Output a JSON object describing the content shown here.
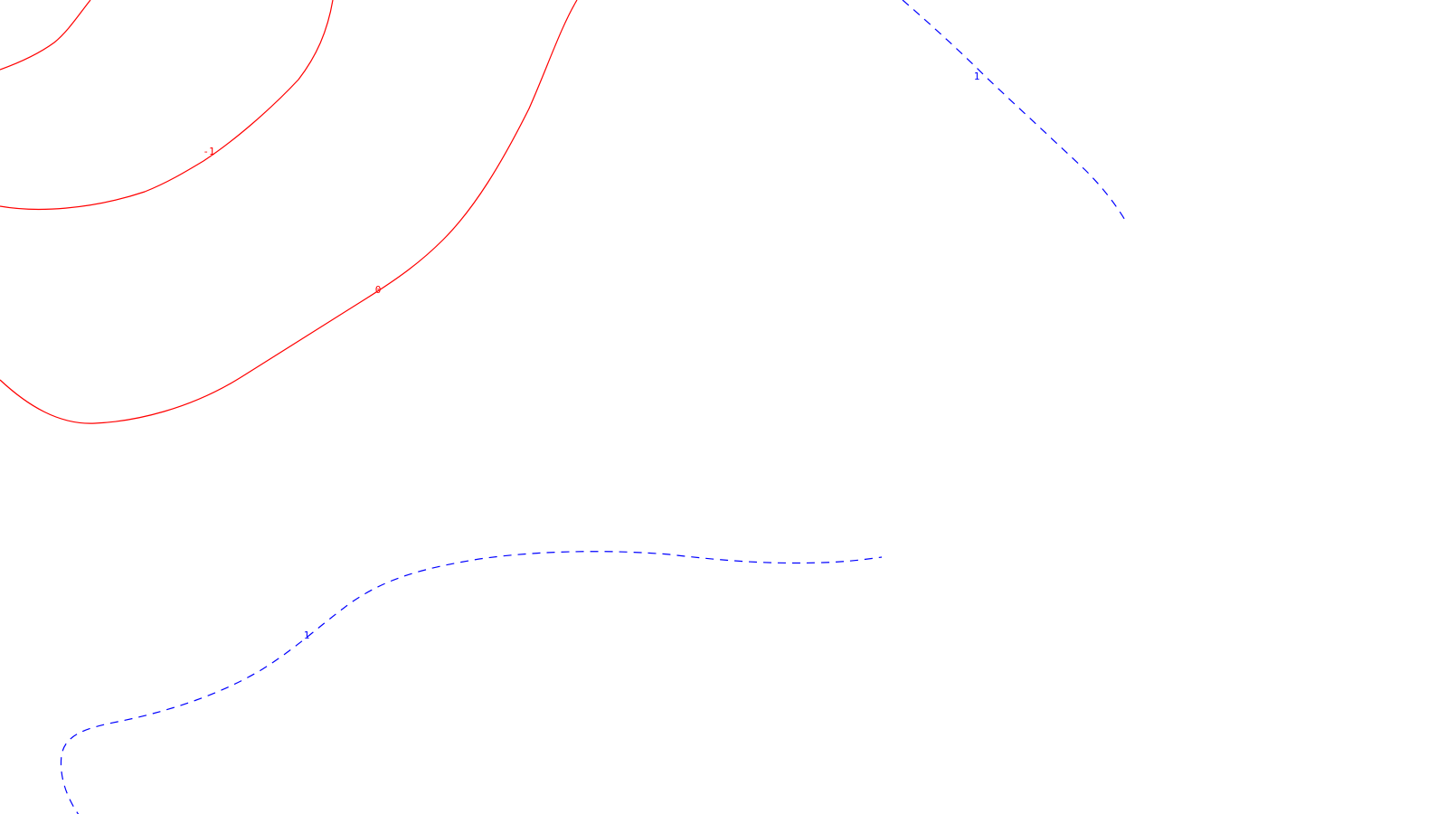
{
  "map": {
    "background": "#ffffff",
    "contours": [
      {
        "id": "neg-1",
        "level_label": "-1",
        "color": "#ff0000",
        "dashed": false
      },
      {
        "id": "zero",
        "level_label": "0",
        "color": "#ff0000",
        "dashed": false
      },
      {
        "id": "pos-1-top",
        "level_label": "1",
        "color": "#0000ff",
        "dashed": true
      },
      {
        "id": "pos-1-bottom",
        "level_label": "1",
        "color": "#0000ff",
        "dashed": true
      }
    ]
  }
}
